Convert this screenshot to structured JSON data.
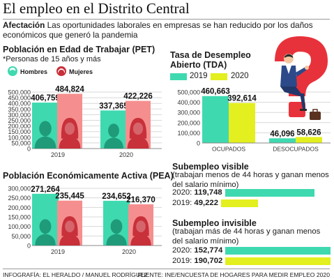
{
  "header": {
    "title": "El empleo en el Distrito Central",
    "lead_label": "Afectación",
    "lead_text": " Las oportunidades laborales en empresas se han reducido por los daños económicos que generó la pandemia"
  },
  "colors": {
    "c2019": "#3fd9b0",
    "c2020_pet": "#f58f8f",
    "c2020_tda": "#e3ef1e",
    "grid": "#d8d8d8",
    "icon_2019": "#1f9b7a",
    "icon_2020": "#c8303a"
  },
  "pet": {
    "title": "Población en Edad de Trabajar (PET)",
    "subtitle": "*Personas de 15 años y más",
    "legend": [
      "Hombres",
      "Mujeres"
    ]
  },
  "pea": {
    "title": "Población Económicamente Activa (PEA)"
  },
  "tda": {
    "title_line1": "Tasa de Desempleo",
    "title_line2": "Abierto (TDA)",
    "legend": [
      "2019",
      "2020"
    ]
  },
  "subempleo_visible": {
    "title": "Subempleo visible",
    "desc": "(trabajan menos de 44 horas y ganan menos del salario mínimo)",
    "rows": [
      {
        "label": "2020: ",
        "value": "119,748",
        "num": 119748
      },
      {
        "label": "2019: ",
        "value": "49,222",
        "num": 49222
      }
    ]
  },
  "subempleo_invisible": {
    "title": "Subempleo invisible",
    "desc": "(trabajan más de 44 horas y ganan menos del salario mínimo)",
    "rows": [
      {
        "label": "2020: ",
        "value": "152,774",
        "num": 152774
      },
      {
        "label": "2019: ",
        "value": "190,702",
        "num": 190702
      }
    ]
  },
  "footer": {
    "credit": "INFOGRAFÍA: EL HERALDO / MANUEL RODRÍGUEZ",
    "source": "FUENTE: INE/ENCUESTA DE HOGARES PARA MEDIR EMPLEO 2020"
  },
  "chart_data": [
    {
      "type": "bar",
      "title": "Población en Edad de Trabajar (PET)",
      "categories": [
        "2019",
        "2020"
      ],
      "series": [
        {
          "name": "Hombres",
          "values": [
            406759,
            337365
          ],
          "labels": [
            "406,759",
            "337,365"
          ]
        },
        {
          "name": "Mujeres",
          "values": [
            484824,
            422226
          ],
          "labels": [
            "484,824",
            "422,226"
          ]
        }
      ],
      "yticks": [
        "0",
        "50,000",
        "100,000",
        "150,000",
        "200,000",
        "250,000",
        "300,000",
        "350,000",
        "400,000",
        "450,000",
        "500,000"
      ],
      "ylim": [
        0,
        500000
      ]
    },
    {
      "type": "bar",
      "title": "Población Económicamente Activa (PEA)",
      "categories": [
        "2019",
        "2020"
      ],
      "series": [
        {
          "name": "Hombres",
          "values": [
            271264,
            234652
          ],
          "labels": [
            "271,264",
            "234,652"
          ]
        },
        {
          "name": "Mujeres",
          "values": [
            235445,
            216370
          ],
          "labels": [
            "235,445",
            "216,370"
          ]
        }
      ],
      "yticks": [
        "0",
        "50,000",
        "100,000",
        "150,000",
        "200,000",
        "250,000",
        "300,000"
      ],
      "ylim": [
        0,
        300000
      ]
    },
    {
      "type": "bar",
      "title": "Tasa de Desempleo Abierto (TDA)",
      "categories": [
        "OCUPADOS",
        "DESOCUPADOS"
      ],
      "series": [
        {
          "name": "2019",
          "values": [
            460663,
            46096
          ],
          "labels": [
            "460,663",
            "46,096"
          ]
        },
        {
          "name": "2020",
          "values": [
            392614,
            58626
          ],
          "labels": [
            "392,614",
            "58,626"
          ]
        }
      ],
      "yticks": [
        "0",
        "100,000",
        "200,000",
        "300,000",
        "400,000",
        "500,000"
      ],
      "ylim": [
        0,
        500000
      ]
    }
  ]
}
